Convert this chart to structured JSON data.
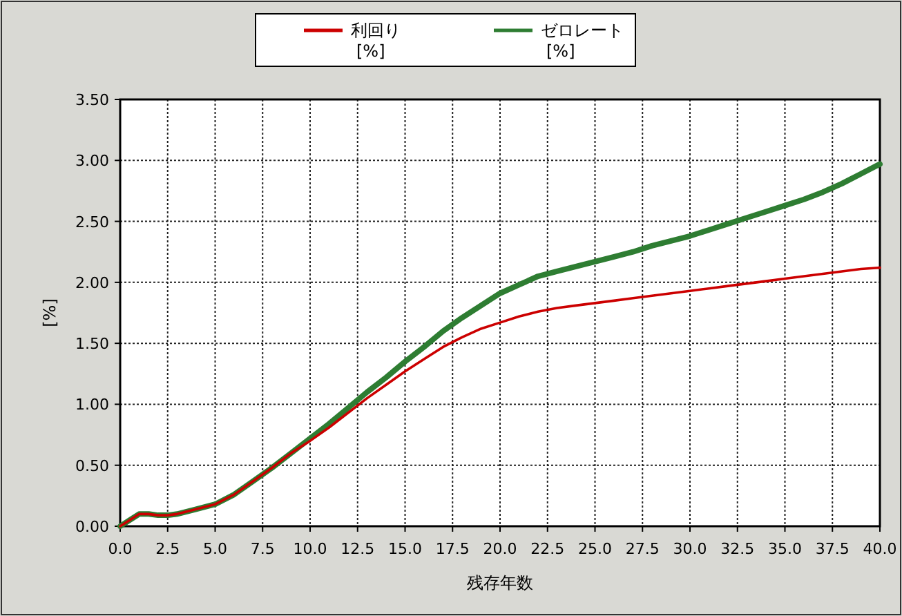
{
  "chart_data": {
    "type": "line",
    "xlabel": "残存年数",
    "ylabel": "[%]",
    "xlim": [
      0,
      40
    ],
    "ylim": [
      0,
      3.5
    ],
    "xticks": [
      {
        "value": 0,
        "label": "0.0"
      },
      {
        "value": 2.5,
        "label": "2.5"
      },
      {
        "value": 5,
        "label": "5.0"
      },
      {
        "value": 7.5,
        "label": "7.5"
      },
      {
        "value": 10,
        "label": "10.0"
      },
      {
        "value": 12.5,
        "label": "12.5"
      },
      {
        "value": 15,
        "label": "15.0"
      },
      {
        "value": 17.5,
        "label": "17.5"
      },
      {
        "value": 20,
        "label": "20.0"
      },
      {
        "value": 22.5,
        "label": "22.5"
      },
      {
        "value": 25,
        "label": "25.0"
      },
      {
        "value": 27.5,
        "label": "27.5"
      },
      {
        "value": 30,
        "label": "30.0"
      },
      {
        "value": 32.5,
        "label": "32.5"
      },
      {
        "value": 35,
        "label": "35.0"
      },
      {
        "value": 37.5,
        "label": "37.5"
      },
      {
        "value": 40,
        "label": "40.0"
      }
    ],
    "yticks": [
      {
        "value": 0,
        "label": "0.00"
      },
      {
        "value": 0.5,
        "label": "0.50"
      },
      {
        "value": 1,
        "label": "1.00"
      },
      {
        "value": 1.5,
        "label": "1.50"
      },
      {
        "value": 2,
        "label": "2.00"
      },
      {
        "value": 2.5,
        "label": "2.50"
      },
      {
        "value": 3,
        "label": "3.00"
      },
      {
        "value": 3.5,
        "label": "3.50"
      }
    ],
    "x": [
      0,
      0.5,
      1,
      1.5,
      2,
      2.5,
      3,
      3.5,
      4,
      5,
      6,
      7,
      8,
      9,
      10,
      11,
      12,
      13,
      14,
      15,
      16,
      17,
      18,
      19,
      20,
      21,
      22,
      23,
      24,
      25,
      26,
      27,
      28,
      29,
      30,
      31,
      32,
      33,
      34,
      35,
      36,
      37,
      38,
      39,
      40
    ],
    "series": [
      {
        "name": "利回り\n[%]",
        "color": "#cc0000",
        "values": [
          0,
          0.05,
          0.1,
          0.1,
          0.09,
          0.09,
          0.1,
          0.12,
          0.14,
          0.18,
          0.26,
          0.37,
          0.48,
          0.6,
          0.7,
          0.81,
          0.93,
          1.05,
          1.16,
          1.27,
          1.37,
          1.47,
          1.55,
          1.62,
          1.67,
          1.72,
          1.76,
          1.79,
          1.81,
          1.83,
          1.85,
          1.87,
          1.89,
          1.91,
          1.93,
          1.95,
          1.97,
          1.99,
          2.01,
          2.03,
          2.05,
          2.07,
          2.09,
          2.11,
          2.12
        ]
      },
      {
        "name": "ゼロレート\n[%]",
        "color": "#2e7d32",
        "values": [
          0,
          0.05,
          0.1,
          0.1,
          0.09,
          0.09,
          0.1,
          0.12,
          0.14,
          0.18,
          0.26,
          0.37,
          0.48,
          0.6,
          0.72,
          0.84,
          0.97,
          1.1,
          1.22,
          1.35,
          1.47,
          1.6,
          1.71,
          1.81,
          1.91,
          1.98,
          2.05,
          2.09,
          2.13,
          2.17,
          2.21,
          2.25,
          2.3,
          2.34,
          2.38,
          2.43,
          2.48,
          2.53,
          2.58,
          2.63,
          2.68,
          2.74,
          2.81,
          2.89,
          2.97
        ]
      }
    ],
    "grid": true,
    "legend": "top",
    "line_style": "solid"
  }
}
